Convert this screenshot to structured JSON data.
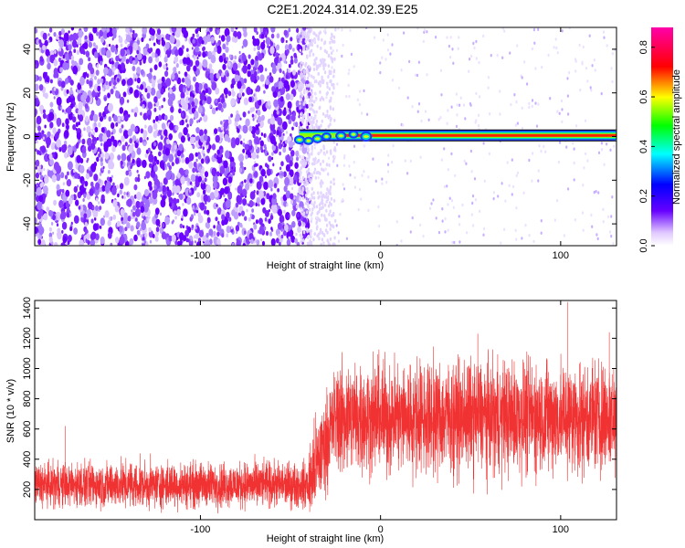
{
  "figure": {
    "title": "C2E1.2024.314.02.39.E25"
  },
  "colors": {
    "snr_line": "#f03232",
    "axis": "#000000",
    "cursor_line": "#000000"
  },
  "chart_data": [
    {
      "id": "spectrogram",
      "type": "heatmap",
      "xlabel": "Height of straight line (km)",
      "ylabel": "Frequency (Hz)",
      "xlim": [
        -192,
        131
      ],
      "ylim": [
        -50,
        50
      ],
      "xticks": [
        -100,
        0,
        100
      ],
      "yticks": [
        -40,
        -20,
        0,
        20,
        40
      ],
      "noise_region_x": [
        -192,
        -45
      ],
      "signal_line": {
        "frequency": 0.5,
        "x_start": -45,
        "x_end": 131
      },
      "colorbar": {
        "label": "Normalized spectral amplitude",
        "range": [
          0.0,
          0.88
        ],
        "ticks": [
          0.0,
          0.2,
          0.4,
          0.6,
          0.8
        ],
        "colormap": [
          "#ffffff",
          "#6600ff",
          "#0000ff",
          "#00ffff",
          "#00ff00",
          "#ffff00",
          "#ff0000",
          "#ff00aa"
        ]
      }
    },
    {
      "id": "snr",
      "type": "line",
      "xlabel": "Height of straight line (km)",
      "ylabel": "SNR (10 * v/v)",
      "xlim": [
        -192,
        131
      ],
      "ylim": [
        0,
        1450
      ],
      "xticks": [
        -100,
        0,
        100
      ],
      "yticks": [
        200,
        400,
        600,
        800,
        1000,
        1200,
        1400
      ],
      "segments": [
        {
          "x_range": [
            -192,
            -40
          ],
          "mean": 230,
          "spread": 120
        },
        {
          "x_range": [
            -40,
            -25
          ],
          "mean": 500,
          "spread": 250
        },
        {
          "x_range": [
            -25,
            131
          ],
          "mean": 680,
          "spread": 300
        }
      ],
      "peaks": [
        {
          "x": 104,
          "y": 1440
        },
        {
          "x": 54,
          "y": 1230
        },
        {
          "x": 127,
          "y": 1240
        },
        {
          "x": -175,
          "y": 620
        }
      ]
    }
  ]
}
